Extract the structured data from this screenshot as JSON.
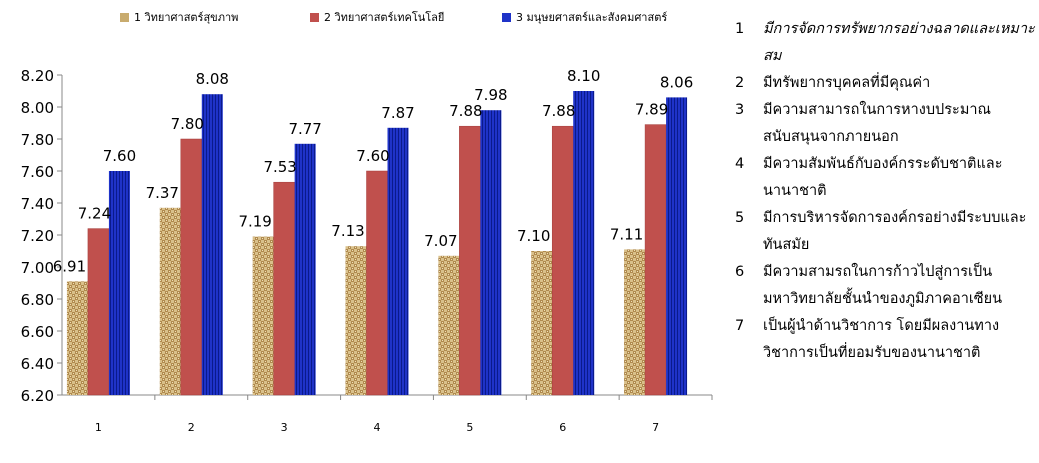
{
  "chart_data": {
    "type": "bar",
    "categories": [
      "1",
      "2",
      "3",
      "4",
      "5",
      "6",
      "7"
    ],
    "series": [
      {
        "name": "1 วิทยาศาสตร์สุขภาพ",
        "values": [
          6.91,
          7.37,
          7.19,
          7.13,
          7.07,
          7.1,
          7.11
        ],
        "color": "#c8ab6e"
      },
      {
        "name": "2 วิทยาศาสตร์เทคโนโลยี",
        "values": [
          7.24,
          7.8,
          7.53,
          7.6,
          7.88,
          7.88,
          7.89
        ],
        "color": "#c0504d"
      },
      {
        "name": "3 มนุษยศาสตร์และสังคมศาสตร์",
        "values": [
          7.6,
          8.08,
          7.77,
          7.87,
          7.98,
          8.1,
          8.06
        ],
        "color": "#1f33c8"
      }
    ],
    "value_labels": [
      [
        "6.91",
        "7.37",
        "7.19",
        "7.13",
        "7.07",
        "7.10",
        "7.11"
      ],
      [
        "7.24",
        "7.80",
        "7.53",
        "7.60",
        "7.88",
        "7.88",
        "7.89"
      ],
      [
        "7.60",
        "8.08",
        "7.77",
        "7.87",
        "7.98",
        "8.10",
        "8.06"
      ]
    ],
    "ylim": [
      6.2,
      8.2
    ],
    "yticks": [
      "6.20",
      "6.40",
      "6.60",
      "6.80",
      "7.00",
      "7.20",
      "7.40",
      "7.60",
      "7.80",
      "8.00",
      "8.20"
    ],
    "title": "",
    "xlabel": "",
    "ylabel": "",
    "grid": false,
    "legend_position": "top"
  },
  "notes": [
    {
      "num": "1",
      "text": "มีการจัดการทรัพยากรอย่างฉลาดและเหมาะสม",
      "italic": true
    },
    {
      "num": "2",
      "text": "มีทรัพยากรบุคคลที่มีคุณค่า",
      "italic": false
    },
    {
      "num": "3",
      "text": "มีความสามารถในการหางบประมาณสนับสนุนจากภายนอก",
      "italic": false
    },
    {
      "num": "4",
      "text": "มีความสัมพันธ์กับองค์กรระดับชาติและนานาชาติ",
      "italic": false
    },
    {
      "num": "5",
      "text": "มีการบริหารจัดการองค์กรอย่างมีระบบและทันสมัย",
      "italic": false
    },
    {
      "num": "6",
      "text": "มีความสามรถในการก้าวไปสู่การเป็นมหาวิทยาลัยชั้นนำของภูมิภาคอาเซียน",
      "italic": false
    },
    {
      "num": "7",
      "text": "เป็นผู้นำด้านวิชาการ โดยมีผลงานทางวิชาการเป็นที่ยอมรับของนานาชาติ",
      "italic": false
    }
  ]
}
